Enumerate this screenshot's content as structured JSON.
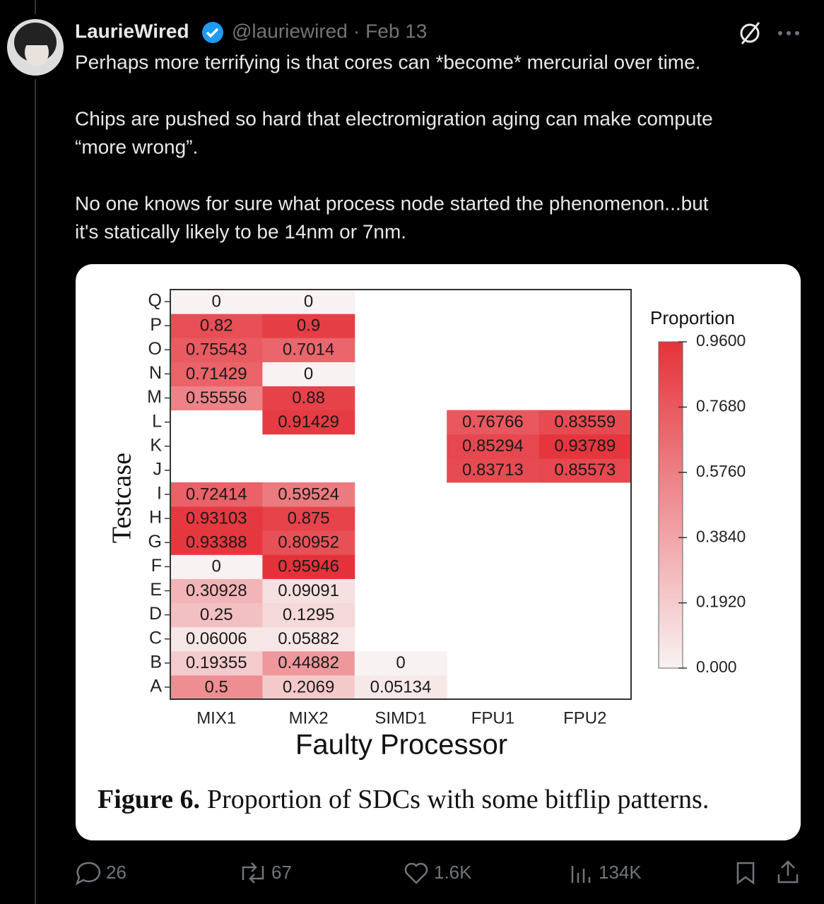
{
  "post": {
    "author": "LaurieWired",
    "handle": "@lauriewired",
    "separator": "·",
    "date": "Feb 13",
    "text_lines": [
      "Perhaps more terrifying is that cores can *become* mercurial over time.",
      "Chips are pushed so hard that electromigration aging can make compute",
      "“more wrong”.",
      "No one knows for sure what process node started the phenomenon...but",
      "it's statically likely to be 14nm or 7nm."
    ],
    "stats": {
      "replies": "26",
      "reposts": "67",
      "likes": "1.6K",
      "views": "134K"
    }
  },
  "figure": {
    "type": "heatmap",
    "x_label": "Faulty Processor",
    "y_label": "Testcase",
    "columns": [
      "MIX1",
      "MIX2",
      "SIMD1",
      "FPU1",
      "FPU2"
    ],
    "rows": [
      "A",
      "B",
      "C",
      "D",
      "E",
      "F",
      "G",
      "H",
      "I",
      "J",
      "K",
      "L",
      "M",
      "N",
      "O",
      "P",
      "Q"
    ],
    "values": [
      [
        0.5,
        0.2069,
        0.05134,
        null,
        null
      ],
      [
        0.19355,
        0.44882,
        0,
        null,
        null
      ],
      [
        0.06006,
        0.05882,
        null,
        null,
        null
      ],
      [
        0.25,
        0.1295,
        null,
        null,
        null
      ],
      [
        0.30928,
        0.09091,
        null,
        null,
        null
      ],
      [
        0,
        0.95946,
        null,
        null,
        null
      ],
      [
        0.93388,
        0.80952,
        null,
        null,
        null
      ],
      [
        0.93103,
        0.875,
        null,
        null,
        null
      ],
      [
        0.72414,
        0.59524,
        null,
        null,
        null
      ],
      [
        null,
        null,
        null,
        0.83713,
        0.85573
      ],
      [
        null,
        null,
        null,
        0.85294,
        0.93789
      ],
      [
        null,
        0.91429,
        null,
        0.76766,
        0.83559
      ],
      [
        0.55556,
        0.88,
        null,
        null,
        null
      ],
      [
        0.71429,
        0,
        null,
        null,
        null
      ],
      [
        0.75543,
        0.7014,
        null,
        null,
        null
      ],
      [
        0.82,
        0.9,
        null,
        null,
        null
      ],
      [
        0,
        0,
        null,
        null,
        null
      ]
    ],
    "color": "#e5323a",
    "colorbar_title": "Proportion",
    "colorbar_lim": [
      0,
      0.96
    ],
    "colorbar_ticks": [
      {
        "value": 0,
        "label": "0.000"
      },
      {
        "value": 0.192,
        "label": "0.1920"
      },
      {
        "value": 0.384,
        "label": "0.3840"
      },
      {
        "value": 0.576,
        "label": "0.5760"
      },
      {
        "value": 0.768,
        "label": "0.7680"
      },
      {
        "value": 0.96,
        "label": "0.9600"
      }
    ],
    "caption_label": "Figure 6.",
    "caption": "Proportion of SDCs with some bitflip patterns."
  }
}
